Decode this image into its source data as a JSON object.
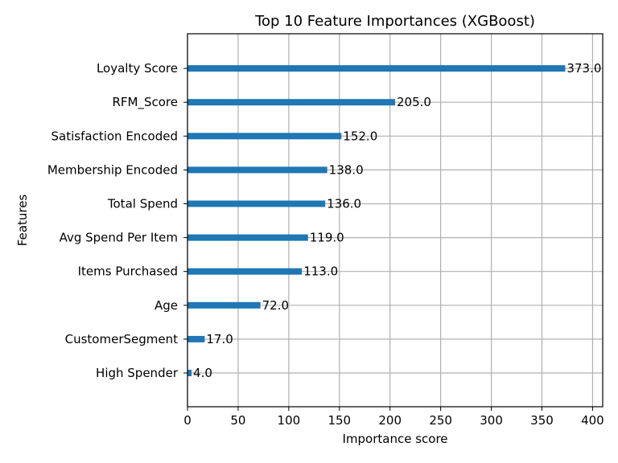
{
  "chart_data": {
    "type": "bar",
    "orientation": "horizontal",
    "title": "Top 10 Feature Importances (XGBoost)",
    "xlabel": "Importance score",
    "ylabel": "Features",
    "categories": [
      "High Spender",
      "CustomerSegment",
      "Age",
      "Items Purchased",
      "Avg Spend Per Item",
      "Total Spend",
      "Membership Encoded",
      "Satisfaction Encoded",
      "RFM_Score",
      "Loyalty Score"
    ],
    "values": [
      4.0,
      17.0,
      72.0,
      113.0,
      119.0,
      136.0,
      138.0,
      152.0,
      205.0,
      373.0
    ],
    "data_labels": [
      "4.0",
      "17.0",
      "72.0",
      "113.0",
      "119.0",
      "136.0",
      "138.0",
      "152.0",
      "205.0",
      "373.0"
    ],
    "xlim": [
      0,
      410
    ],
    "x_ticks": [
      0,
      50,
      100,
      150,
      200,
      250,
      300,
      350,
      400
    ],
    "grid": true,
    "bar_color": "#1f77b4"
  }
}
